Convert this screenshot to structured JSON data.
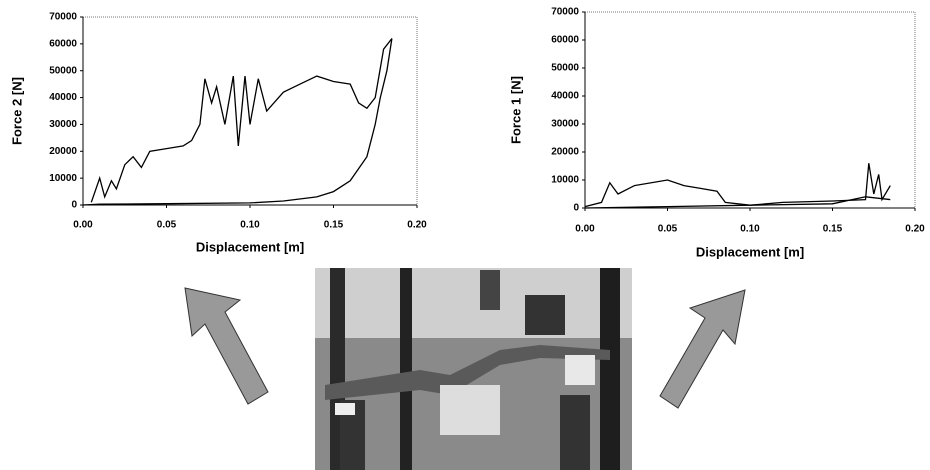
{
  "chart_data": [
    {
      "type": "line",
      "xlabel": "Displacement [m]",
      "ylabel": "Force 2 [N]",
      "xlim": [
        0,
        0.2
      ],
      "ylim": [
        0,
        70000
      ],
      "xticks": [
        {
          "value": 0,
          "label": "0.00"
        },
        {
          "value": 0.05,
          "label": "0.05"
        },
        {
          "value": 0.1,
          "label": "0.10"
        },
        {
          "value": 0.15,
          "label": "0.15"
        },
        {
          "value": 0.2,
          "label": "0.20"
        }
      ],
      "yticks": [
        0,
        10000,
        20000,
        30000,
        40000,
        50000,
        60000,
        70000
      ],
      "series": [
        {
          "color": "#000000",
          "x": [
            0.005,
            0.01,
            0.013,
            0.017,
            0.02,
            0.025,
            0.03,
            0.035,
            0.04,
            0.05,
            0.06,
            0.065,
            0.07,
            0.073,
            0.077,
            0.08,
            0.085,
            0.09,
            0.093,
            0.097,
            0.1,
            0.105,
            0.11,
            0.12,
            0.13,
            0.14,
            0.15,
            0.16,
            0.165,
            0.17,
            0.175,
            0.18,
            0.185
          ],
          "values": [
            1000,
            10000,
            3000,
            9000,
            6000,
            15000,
            18000,
            14000,
            20000,
            21000,
            22000,
            24000,
            30000,
            47000,
            38000,
            44000,
            30000,
            48000,
            22000,
            48000,
            30000,
            47000,
            35000,
            42000,
            45000,
            48000,
            46000,
            45000,
            38000,
            36000,
            40000,
            58000,
            62000
          ]
        },
        {
          "color": "#000000",
          "x": [
            0.185,
            0.182,
            0.178,
            0.175,
            0.17,
            0.16,
            0.15,
            0.14,
            0.12,
            0.1,
            0.05,
            0.01,
            0
          ],
          "values": [
            62000,
            50000,
            40000,
            30000,
            18000,
            9000,
            5000,
            3000,
            1500,
            800,
            500,
            300,
            0
          ]
        }
      ]
    },
    {
      "type": "line",
      "xlabel": "Displacement [m]",
      "ylabel": "Force 1 [N]",
      "xlim": [
        0,
        0.2
      ],
      "ylim": [
        0,
        70000
      ],
      "xticks": [
        {
          "value": 0,
          "label": "0.00"
        },
        {
          "value": 0.05,
          "label": "0.05"
        },
        {
          "value": 0.1,
          "label": "0.10"
        },
        {
          "value": 0.15,
          "label": "0.15"
        },
        {
          "value": 0.2,
          "label": "0.20"
        }
      ],
      "yticks": [
        0,
        10000,
        20000,
        30000,
        40000,
        50000,
        60000,
        70000
      ],
      "series": [
        {
          "color": "#000000",
          "x": [
            0,
            0.01,
            0.015,
            0.02,
            0.03,
            0.05,
            0.06,
            0.07,
            0.08,
            0.085,
            0.1,
            0.12,
            0.15,
            0.17,
            0.172,
            0.175,
            0.178,
            0.18,
            0.185
          ],
          "values": [
            500,
            2000,
            9000,
            5000,
            8000,
            10000,
            8000,
            7000,
            6000,
            2000,
            1000,
            2000,
            2500,
            3000,
            16000,
            5000,
            12000,
            3000,
            8000
          ]
        },
        {
          "color": "#000000",
          "x": [
            0,
            0.05,
            0.1,
            0.15,
            0.17,
            0.185
          ],
          "values": [
            0,
            500,
            1000,
            1500,
            4000,
            3000
          ]
        }
      ]
    }
  ]
}
